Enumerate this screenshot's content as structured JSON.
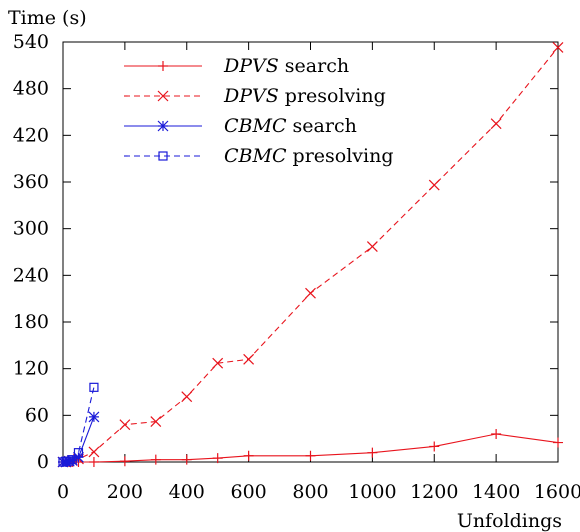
{
  "chart_data": {
    "type": "line",
    "ylabel": "Time (s)",
    "xlabel": "Unfoldings",
    "xlim": [
      0,
      1600
    ],
    "ylim": [
      0,
      540
    ],
    "xticks": [
      0,
      200,
      400,
      600,
      800,
      1000,
      1200,
      1400,
      1600
    ],
    "yticks": [
      0,
      60,
      120,
      180,
      240,
      300,
      360,
      420,
      480,
      540
    ],
    "grid": false,
    "legend_position": "top-left",
    "series": [
      {
        "name_italic": "DPVS",
        "name_rest": " search",
        "color": "#e8141d",
        "dash": "solid",
        "marker": "plus",
        "x": [
          0,
          10,
          20,
          30,
          50,
          100,
          200,
          300,
          400,
          500,
          600,
          800,
          1000,
          1200,
          1400,
          1600
        ],
        "y": [
          0,
          0,
          0,
          0,
          0,
          0,
          1,
          3,
          3,
          5,
          8,
          8,
          12,
          20,
          36,
          25
        ]
      },
      {
        "name_italic": "DPVS",
        "name_rest": " presolving",
        "color": "#e8141d",
        "dash": "dashed",
        "marker": "x",
        "x": [
          0,
          10,
          20,
          30,
          50,
          100,
          200,
          300,
          400,
          500,
          600,
          800,
          1000,
          1200,
          1400,
          1600
        ],
        "y": [
          0,
          0,
          1,
          2,
          4,
          13,
          48,
          52,
          84,
          127,
          132,
          217,
          277,
          356,
          435,
          533
        ]
      },
      {
        "name_italic": "CBMC",
        "name_rest": " search",
        "color": "#1a1ad8",
        "dash": "solid",
        "marker": "star",
        "x": [
          0,
          10,
          20,
          30,
          50,
          100
        ],
        "y": [
          0,
          0,
          1,
          2,
          6,
          58
        ]
      },
      {
        "name_italic": "CBMC",
        "name_rest": " presolving",
        "color": "#1a1ad8",
        "dash": "dashed",
        "marker": "square",
        "x": [
          0,
          10,
          20,
          30,
          50,
          100
        ],
        "y": [
          0,
          1,
          1,
          3,
          12,
          96
        ]
      }
    ]
  }
}
